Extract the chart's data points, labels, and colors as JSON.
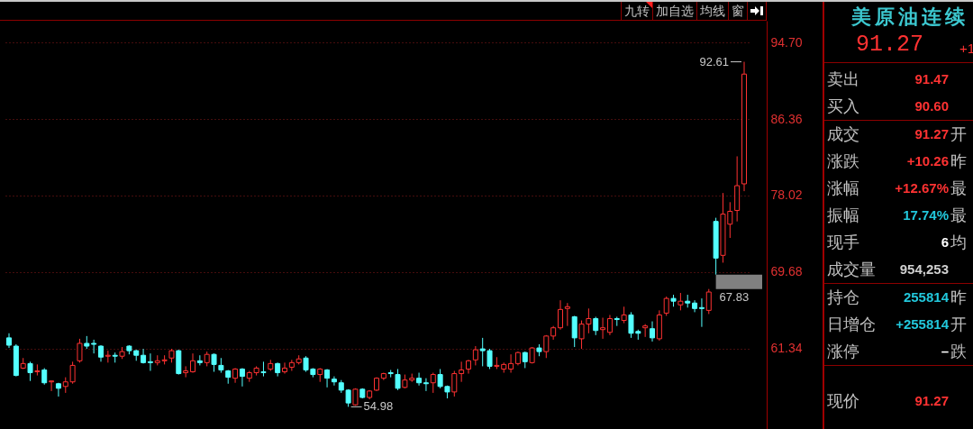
{
  "chart_data": [
    {
      "type": "candlestick",
      "categories": [
        null,
        null,
        null,
        null,
        null,
        null,
        null,
        null,
        null,
        null,
        null,
        null,
        null,
        null,
        null,
        null,
        null,
        null,
        null,
        null,
        null,
        null,
        null,
        null,
        null,
        null,
        null,
        null,
        null,
        null,
        null,
        null,
        null,
        null,
        null,
        null,
        null,
        null,
        null,
        null,
        null,
        null,
        null,
        null,
        null,
        null,
        null,
        null,
        null,
        null,
        null,
        null,
        null,
        null,
        null,
        null,
        null,
        null,
        null,
        null,
        null,
        null,
        null,
        null,
        null,
        null,
        null,
        null,
        null,
        null,
        null,
        null,
        null,
        null,
        null,
        null,
        null,
        null,
        null,
        null,
        null,
        null,
        null,
        null,
        null,
        null,
        null,
        null,
        null,
        null,
        null,
        null,
        null,
        null,
        null,
        null,
        null,
        null,
        null,
        null,
        null,
        null,
        null,
        null,
        null
      ],
      "ohlc": [
        [
          62.5,
          63.0,
          61.4,
          61.7
        ],
        [
          61.6,
          61.8,
          58.3,
          58.4
        ],
        [
          59.2,
          60.3,
          59.1,
          59.7
        ],
        [
          59.7,
          59.9,
          57.8,
          58.7
        ],
        [
          58.8,
          59.6,
          58.4,
          58.9
        ],
        [
          59.0,
          59.2,
          57.4,
          57.6
        ],
        [
          57.7,
          57.8,
          56.7,
          57.8
        ],
        [
          57.5,
          57.6,
          56.1,
          57.0
        ],
        [
          57.2,
          58.2,
          56.5,
          57.7
        ],
        [
          57.7,
          59.9,
          57.5,
          59.5
        ],
        [
          60.0,
          62.4,
          59.8,
          61.9
        ],
        [
          61.9,
          62.7,
          61.3,
          61.6
        ],
        [
          61.9,
          62.3,
          60.8,
          61.8
        ],
        [
          61.6,
          61.7,
          59.9,
          60.4
        ],
        [
          60.5,
          61.1,
          59.8,
          60.6
        ],
        [
          60.6,
          60.9,
          59.8,
          60.5
        ],
        [
          60.5,
          61.5,
          60.2,
          61.0
        ],
        [
          61.6,
          61.7,
          60.7,
          61.1
        ],
        [
          61.1,
          61.2,
          60.0,
          60.6
        ],
        [
          60.6,
          61.3,
          59.7,
          59.8
        ],
        [
          59.9,
          60.8,
          58.9,
          59.8
        ],
        [
          59.8,
          60.6,
          59.5,
          60.0
        ],
        [
          60.0,
          60.6,
          59.6,
          60.1
        ],
        [
          60.3,
          61.3,
          59.8,
          61.1
        ],
        [
          61.1,
          61.2,
          58.5,
          58.6
        ],
        [
          58.7,
          59.4,
          58.2,
          58.9
        ],
        [
          58.8,
          60.8,
          58.7,
          60.0
        ],
        [
          60.0,
          60.6,
          59.5,
          59.8
        ],
        [
          59.8,
          61.0,
          59.4,
          60.7
        ],
        [
          60.7,
          60.8,
          58.8,
          59.6
        ],
        [
          59.5,
          60.3,
          58.7,
          59.0
        ],
        [
          58.9,
          59.0,
          57.5,
          58.2
        ],
        [
          58.1,
          59.2,
          57.6,
          59.1
        ],
        [
          59.1,
          59.2,
          57.2,
          58.3
        ],
        [
          58.1,
          58.9,
          57.7,
          58.7
        ],
        [
          58.7,
          59.4,
          58.4,
          59.2
        ],
        [
          58.8,
          59.9,
          58.3,
          58.7
        ],
        [
          59.1,
          60.1,
          58.9,
          59.7
        ],
        [
          59.7,
          59.8,
          58.3,
          58.7
        ],
        [
          58.8,
          59.8,
          58.6,
          59.2
        ],
        [
          59.3,
          60.1,
          58.9,
          59.8
        ],
        [
          59.8,
          60.6,
          59.6,
          60.2
        ],
        [
          60.3,
          60.5,
          58.8,
          59.0
        ],
        [
          59.1,
          59.2,
          58.2,
          58.5
        ],
        [
          58.5,
          59.2,
          57.7,
          59.1
        ],
        [
          59.0,
          59.1,
          57.1,
          58.1
        ],
        [
          58.0,
          58.3,
          57.3,
          57.7
        ],
        [
          57.6,
          57.9,
          56.5,
          56.8
        ],
        [
          56.8,
          56.9,
          54.98,
          55.4
        ],
        [
          55.2,
          57.0,
          55.1,
          56.9
        ],
        [
          56.9,
          57.0,
          55.9,
          56.0
        ],
        [
          56.0,
          56.8,
          55.8,
          56.7
        ],
        [
          56.8,
          58.2,
          56.7,
          58.1
        ],
        [
          58.1,
          58.7,
          57.9,
          58.6
        ],
        [
          58.7,
          59.0,
          58.2,
          58.6
        ],
        [
          58.5,
          59.1,
          56.8,
          57.0
        ],
        [
          57.1,
          58.5,
          57.0,
          57.9
        ],
        [
          57.9,
          58.6,
          57.7,
          58.1
        ],
        [
          58.1,
          58.7,
          57.3,
          57.6
        ],
        [
          57.6,
          58.1,
          56.7,
          57.5
        ],
        [
          57.6,
          58.7,
          56.5,
          58.5
        ],
        [
          58.5,
          59.1,
          57.0,
          57.2
        ],
        [
          57.2,
          57.3,
          55.9,
          56.6
        ],
        [
          56.6,
          58.9,
          56.1,
          58.6
        ],
        [
          58.6,
          59.9,
          57.7,
          59.0
        ],
        [
          59.1,
          60.1,
          58.6,
          60.0
        ],
        [
          60.1,
          61.6,
          59.5,
          61.2
        ],
        [
          61.3,
          62.5,
          59.4,
          61.1
        ],
        [
          61.1,
          61.3,
          59.1,
          59.4
        ],
        [
          59.4,
          60.4,
          59.1,
          59.5
        ],
        [
          59.1,
          59.8,
          58.7,
          59.6
        ],
        [
          59.1,
          60.7,
          58.7,
          59.7
        ],
        [
          59.7,
          61.0,
          59.5,
          60.9
        ],
        [
          60.9,
          61.0,
          59.2,
          59.9
        ],
        [
          59.8,
          61.5,
          59.7,
          61.4
        ],
        [
          61.4,
          61.8,
          60.5,
          61.0
        ],
        [
          61.0,
          62.8,
          60.3,
          62.7
        ],
        [
          62.7,
          63.8,
          62.3,
          63.6
        ],
        [
          63.6,
          66.6,
          63.4,
          65.6
        ],
        [
          65.7,
          66.3,
          63.8,
          65.9
        ],
        [
          64.8,
          64.9,
          61.5,
          62.5
        ],
        [
          62.4,
          64.4,
          61.3,
          64.0
        ],
        [
          64.0,
          65.7,
          63.0,
          64.6
        ],
        [
          64.6,
          64.8,
          62.8,
          63.3
        ],
        [
          63.4,
          64.7,
          62.4,
          63.6
        ],
        [
          63.1,
          65.0,
          62.8,
          64.6
        ],
        [
          64.6,
          64.8,
          63.8,
          64.5
        ],
        [
          64.4,
          65.9,
          64.1,
          65.0
        ],
        [
          65.0,
          65.3,
          62.5,
          63.0
        ],
        [
          63.2,
          63.4,
          62.3,
          63.0
        ],
        [
          63.6,
          64.0,
          62.6,
          63.8
        ],
        [
          63.5,
          64.3,
          62.1,
          62.5
        ],
        [
          62.4,
          65.5,
          62.2,
          65.0
        ],
        [
          65.2,
          67.0,
          64.9,
          66.8
        ],
        [
          66.8,
          67.2,
          65.9,
          66.5
        ],
        [
          66.1,
          67.4,
          65.5,
          66.5
        ],
        [
          66.5,
          67.2,
          65.8,
          66.3
        ],
        [
          66.3,
          66.6,
          65.3,
          65.7
        ],
        [
          65.8,
          66.8,
          63.7,
          65.7
        ],
        [
          65.5,
          67.83,
          65.1,
          67.5
        ],
        [
          75.2,
          75.6,
          69.4,
          71.2
        ],
        [
          71.5,
          78.3,
          70.7,
          76.0
        ],
        [
          74.9,
          77.3,
          73.4,
          76.3
        ],
        [
          76.4,
          82.3,
          75.2,
          79.1
        ],
        [
          79.3,
          92.61,
          78.5,
          91.27
        ]
      ],
      "colors": [
        "#54ffff",
        "#54ffff",
        "#ff3232",
        "#54ffff",
        "#ff3232",
        "#54ffff",
        "#ff3232",
        "#54ffff",
        "#ff3232",
        "#ff3232",
        "#ff3232",
        "#54ffff",
        "#54ffff",
        "#54ffff",
        "#ff3232",
        "#54ffff",
        "#ff3232",
        "#54ffff",
        "#54ffff",
        "#54ffff",
        "#54ffff",
        "#ff3232",
        "#ff3232",
        "#ff3232",
        "#54ffff",
        "#ff3232",
        "#ff3232",
        "#54ffff",
        "#ff3232",
        "#54ffff",
        "#54ffff",
        "#54ffff",
        "#ff3232",
        "#54ffff",
        "#ff3232",
        "#ff3232",
        "#54ffff",
        "#ff3232",
        "#54ffff",
        "#ff3232",
        "#ff3232",
        "#ff3232",
        "#54ffff",
        "#54ffff",
        "#ff3232",
        "#54ffff",
        "#54ffff",
        "#54ffff",
        "#54ffff",
        "#ff3232",
        "#54ffff",
        "#ff3232",
        "#ff3232",
        "#ff3232",
        "#54ffff",
        "#54ffff",
        "#ff3232",
        "#ff3232",
        "#54ffff",
        "#54ffff",
        "#ff3232",
        "#54ffff",
        "#54ffff",
        "#ff3232",
        "#ff3232",
        "#ff3232",
        "#ff3232",
        "#54ffff",
        "#54ffff",
        "#ff3232",
        "#ff3232",
        "#ff3232",
        "#ff3232",
        "#54ffff",
        "#ff3232",
        "#54ffff",
        "#ff3232",
        "#ff3232",
        "#ff3232",
        "#ff3232",
        "#54ffff",
        "#ff3232",
        "#ff3232",
        "#54ffff",
        "#ff3232",
        "#ff3232",
        "#54ffff",
        "#ff3232",
        "#54ffff",
        "#54ffff",
        "#ff3232",
        "#54ffff",
        "#ff3232",
        "#ff3232",
        "#54ffff",
        "#ff3232",
        "#54ffff",
        "#54ffff",
        "#54ffff",
        "#ff3232",
        "#54ffff",
        "#ff3232",
        "#ff3232",
        "#ff3232",
        "#ff3232"
      ],
      "ylim": [
        52.56,
        97.09
      ],
      "yticks": [
        {
          "value": 94.7,
          "label": "94.70"
        },
        86.36,
        78.02,
        69.68,
        61.34
      ],
      "grid": "y",
      "tick_labels": "y",
      "bands": [
        {
          "axis": "y",
          "from": 67.83,
          "to": 69.4,
          "label": "67.83",
          "color": "#808080"
        }
      ],
      "annotations": [
        "92.61",
        "54.98"
      ]
    },
    {
      "type": "other",
      "categories": [
        "九转",
        "加自选",
        "均线",
        "窗"
      ]
    },
    {
      "type": "other",
      "title": "美原油连续",
      "subtitle": "91.27",
      "annotations": [
        "+1"
      ],
      "categories": [
        "卖出",
        "买入",
        "成交",
        "涨跌",
        "涨幅",
        "振幅",
        "现手",
        "成交量",
        "持仓",
        "日增仓",
        "涨停",
        "现价"
      ],
      "value_labels": [
        "91.47",
        "90.60",
        "91.27",
        "+10.26",
        "+12.67%",
        "17.74%",
        "6",
        "954,253",
        "255814",
        "+255814",
        "–",
        "91.27"
      ],
      "colors": [
        "#ff3232",
        "#ff3232",
        "#ff3232",
        "#ff3232",
        "#ff3232",
        "#22c8dc",
        "#ffffff",
        "#d0d0d0",
        "#22c8dc",
        "#22c8dc",
        "#ffffff",
        "#ff3232"
      ],
      "y2_categories": [
        null,
        null,
        "开",
        "昨",
        "最",
        "最",
        "均",
        null,
        "昨",
        "开",
        "跌",
        null
      ]
    }
  ]
}
